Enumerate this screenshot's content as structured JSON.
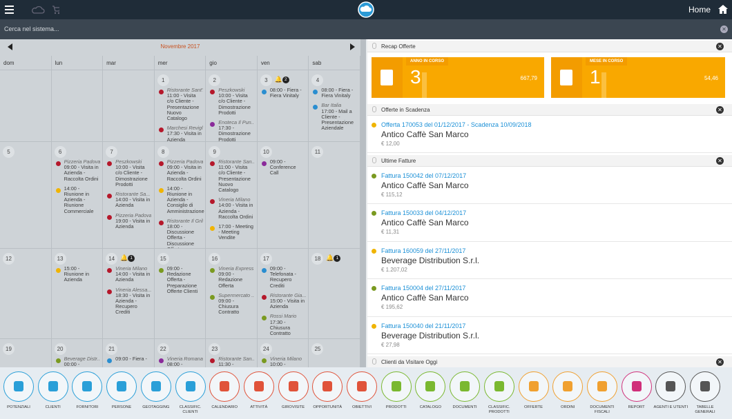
{
  "header": {
    "home": "Home"
  },
  "search": {
    "placeholder": "Cerca nel sistema..."
  },
  "calendar": {
    "month": "Novembre 2017",
    "weekdays": [
      "dom",
      "lun",
      "mar",
      "mer",
      "gio",
      "ven",
      "sab"
    ],
    "weeks": [
      [
        null,
        null,
        null,
        {
          "day": 1,
          "events": [
            {
              "place": "Ristorante Sant'...",
              "text": "11:00 - Visita c/o Cliente - Presentazione Nuovo Catalogo",
              "color": "#b5182b"
            },
            {
              "place": "Marchesi Reviglì...",
              "text": "17:30 - Visita in Azienda",
              "color": "#b5182b"
            }
          ]
        },
        {
          "day": 2,
          "events": [
            {
              "place": "Peszkowski",
              "text": "10:00 - Visita c/o Cliente - Dimostrazione Prodotti",
              "color": "#b5182b"
            },
            {
              "place": "Enoteca Il Pun...",
              "text": "17:30 - Dimostrazione Prodotti",
              "color": "#8a2a9a"
            }
          ]
        },
        {
          "day": 3,
          "badge": 2,
          "events": [
            {
              "text": "08:00 - Fiera - Fiera Vinitaly",
              "color": "#2a8ed0"
            }
          ]
        },
        {
          "day": 4,
          "events": [
            {
              "text": "08:00 - Fiera - Fiera Vinitaly",
              "color": "#2a8ed0"
            },
            {
              "place": "Bar Italia",
              "text": "17:00 - Mail a Cliente - Presentazione Aziendale",
              "color": "#2a8ed0"
            }
          ]
        }
      ],
      [
        {
          "day": 5
        },
        {
          "day": 6,
          "events": [
            {
              "place": "Pizzeria Padova",
              "text": "09:00 - Visita in Azienda - Raccolta Ordini",
              "color": "#b5182b"
            },
            {
              "text": "14:00 - Riunione in Azienda - Riunione Commerciale",
              "color": "#f0b400"
            }
          ]
        },
        {
          "day": 7,
          "events": [
            {
              "place": "Peszkowski",
              "text": "10:00 - Visita c/o Cliente - Dimostrazione Prodotti",
              "color": "#b5182b"
            },
            {
              "place": "Ristorante Sa...",
              "text": "14:00 - Visita in Azienda",
              "color": "#b5182b"
            },
            {
              "place": "Pizzeria Padova",
              "text": "19:00 - Visita in Azienda",
              "color": "#b5182b"
            }
          ]
        },
        {
          "day": 8,
          "events": [
            {
              "place": "Pizzeria Padova",
              "text": "09:00 - Visita in Azienda - Raccolta Ordini",
              "color": "#b5182b"
            },
            {
              "text": "14:00 - Riunione in Azienda - Consiglio di Amministrazione",
              "color": "#f0b400"
            },
            {
              "place": "Ristorante Il Grillo",
              "text": "18:00 - Discussione Offerta - Discussione Offerta",
              "color": "#b5182b"
            }
          ]
        },
        {
          "day": 9,
          "events": [
            {
              "place": "Ristorante San...",
              "text": "11:00 - Visita c/o Cliente - Presentazione Nuovo Catalogo",
              "color": "#b5182b"
            },
            {
              "place": "Vineria Milano",
              "text": "14:00 - Visita in Azienda - Raccolta Ordini",
              "color": "#b5182b"
            },
            {
              "text": "17:00 - Meeting - Meeting Vendite",
              "color": "#f0b400"
            }
          ]
        },
        {
          "day": 10,
          "events": [
            {
              "text": "09:00 - Conference Call",
              "color": "#8a2a9a"
            }
          ]
        },
        {
          "day": 11
        }
      ],
      [
        {
          "day": 12
        },
        {
          "day": 13,
          "events": [
            {
              "text": "15:00 - Riunione in Azienda",
              "color": "#f0b400"
            }
          ]
        },
        {
          "day": 14,
          "badge": 1,
          "events": [
            {
              "place": "Vineria Milano",
              "text": "14:00 - Visita in Azienda",
              "color": "#b5182b"
            },
            {
              "place": "Vineria Alessa...",
              "text": "18:30 - Visita in Azienda - Recupero Crediti",
              "color": "#b5182b"
            }
          ]
        },
        {
          "day": 15,
          "events": [
            {
              "text": "09:00 - Redazione Offerta - Preparazione Offerte Clienti",
              "color": "#7a9a20"
            }
          ]
        },
        {
          "day": 16,
          "events": [
            {
              "place": "Vineria Express",
              "text": "09:00 - Redazione Offerta",
              "color": "#7a9a20"
            },
            {
              "place": "Supermercato ...",
              "text": "09:00 - Chiusura Contratto",
              "color": "#7a9a20"
            }
          ]
        },
        {
          "day": 17,
          "events": [
            {
              "text": "09:00 - Telefonata - Recupero Crediti",
              "color": "#2a8ed0"
            },
            {
              "place": "Ristorante Gia...",
              "text": "15:00 - Visita in Azienda",
              "color": "#b5182b"
            },
            {
              "place": "Rossi Mario",
              "text": "17:30 - Chiusura Contratto",
              "color": "#7a9a20"
            }
          ]
        },
        {
          "day": 18,
          "badge": 1
        }
      ],
      [
        {
          "day": 19
        },
        {
          "day": 20,
          "events": [
            {
              "place": "Beverage Distr...",
              "text": "00:00 -",
              "color": "#7a9a20"
            }
          ]
        },
        {
          "day": 21,
          "events": [
            {
              "text": "09:00 - Fiera -",
              "color": "#2a8ed0"
            }
          ]
        },
        {
          "day": 22,
          "events": [
            {
              "place": "Vineria Romana",
              "text": "08:00 -",
              "color": "#8a2a9a"
            }
          ]
        },
        {
          "day": 23,
          "events": [
            {
              "place": "Ristorante San...",
              "text": "11:30 -",
              "color": "#b5182b"
            }
          ]
        },
        {
          "day": 24,
          "events": [
            {
              "place": "Vineria Milano",
              "text": "10:00 -",
              "color": "#7a9a20"
            }
          ]
        },
        {
          "day": 25
        }
      ]
    ]
  },
  "recap": {
    "title": "Recap Offerte",
    "tiles": [
      {
        "label": "ANNO IN CORSO",
        "count": 3,
        "amount": "667,79"
      },
      {
        "label": "MESE IN CORSO",
        "count": 1,
        "amount": "54,46"
      }
    ]
  },
  "scadenza": {
    "title": "Offerte in Scadenza",
    "items": [
      {
        "link": "Offerta 170053 del 01/12/2017 - Scadenza 10/09/2018",
        "name": "Antico Caffè San Marco",
        "price": "€ 12,00",
        "color": "#f0b400"
      }
    ]
  },
  "fatture": {
    "title": "Ultime Fatture",
    "items": [
      {
        "link": "Fattura 150042 del 07/12/2017",
        "name": "Antico Caffè San Marco",
        "price": "€ 115,12",
        "color": "#7a9a20"
      },
      {
        "link": "Fattura 150033 del 04/12/2017",
        "name": "Antico Caffè San Marco",
        "price": "€ 11,31",
        "color": "#7a9a20"
      },
      {
        "link": "Fattura 160059 del 27/11/2017",
        "name": "Beverage Distribution S.r.l.",
        "price": "€ 1.207,02",
        "color": "#f0b400"
      },
      {
        "link": "Fattura 150004 del 27/11/2017",
        "name": "Antico Caffè San Marco",
        "price": "€ 195,62",
        "color": "#7a9a20"
      },
      {
        "link": "Fattura 150040 del 21/11/2017",
        "name": "Beverage Distribution S.r.l.",
        "price": "€ 27,98",
        "color": "#f0b400"
      }
    ]
  },
  "clienti": {
    "title": "Clienti da Visitare Oggi"
  },
  "toolbar": [
    {
      "label": "POTENZIALI",
      "color": "#2a9fd8"
    },
    {
      "label": "CLIENTI",
      "color": "#2a9fd8"
    },
    {
      "label": "FORNITORI",
      "color": "#2a9fd8"
    },
    {
      "label": "PERSONE",
      "color": "#2a9fd8"
    },
    {
      "label": "GEOTAGGING",
      "color": "#2a9fd8"
    },
    {
      "label": "CLASSIFIC. CLIENTI",
      "color": "#2a9fd8"
    },
    {
      "label": "CALENDARIO",
      "color": "#e0533a"
    },
    {
      "label": "ATTIVITÀ",
      "color": "#e0533a"
    },
    {
      "label": "GIROVISITE",
      "color": "#e0533a"
    },
    {
      "label": "OPPORTUNITÀ",
      "color": "#e0533a"
    },
    {
      "label": "OBIETTIVI",
      "color": "#e0533a"
    },
    {
      "label": "PRODOTTI",
      "color": "#7ab830"
    },
    {
      "label": "CATALOGO",
      "color": "#7ab830"
    },
    {
      "label": "DOCUMENTI",
      "color": "#7ab830"
    },
    {
      "label": "CLASSIFIC. PRODOTTI",
      "color": "#7ab830"
    },
    {
      "label": "OFFERTE",
      "color": "#f0a030"
    },
    {
      "label": "ORDINI",
      "color": "#f0a030"
    },
    {
      "label": "DOCUMENTI FISCALI",
      "color": "#f0a030"
    },
    {
      "label": "REPORT",
      "color": "#d0307a"
    },
    {
      "label": "AGENTI E UTENTI",
      "color": "#555555"
    },
    {
      "label": "TABELLE GENERALI",
      "color": "#555555"
    }
  ]
}
